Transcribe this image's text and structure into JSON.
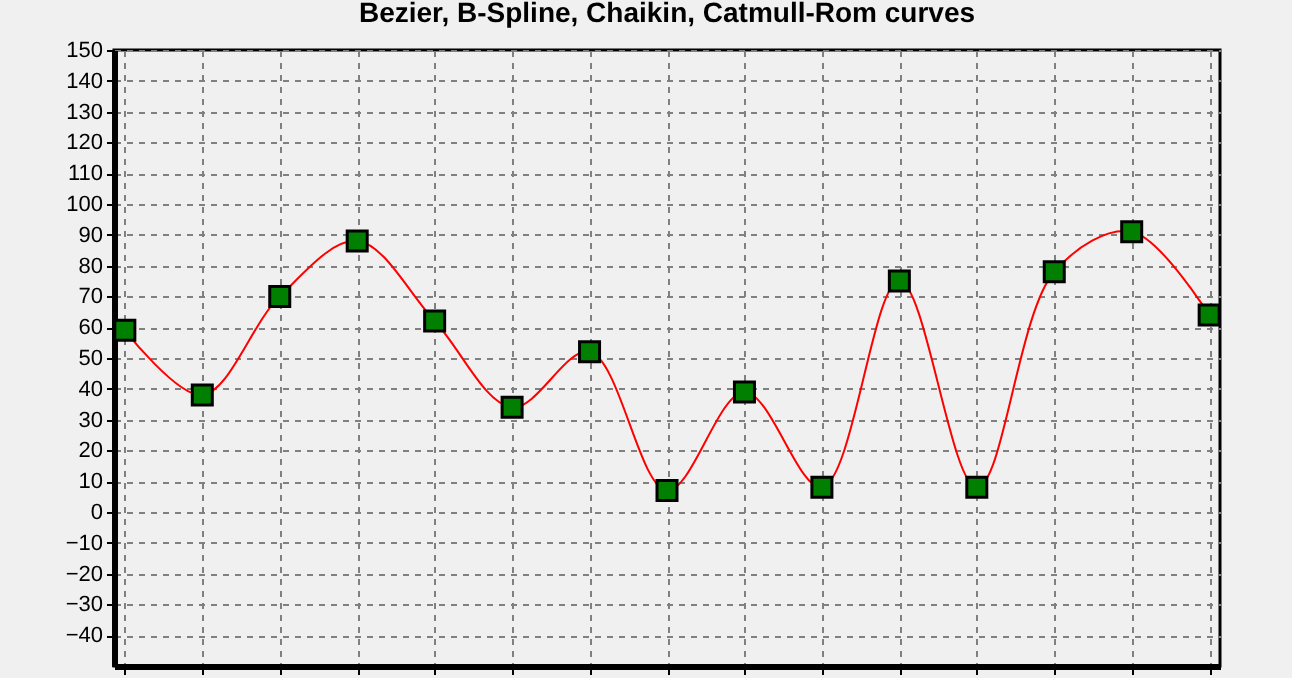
{
  "chart_data": {
    "type": "line",
    "title": "Bezier, B-Spline, Chaikin, Catmull-Rom curves",
    "categories": [
      null,
      null,
      null,
      null,
      null,
      null,
      null,
      null,
      null,
      null,
      null,
      null,
      null,
      null,
      null
    ],
    "series": [
      {
        "color": "#ff0000",
        "values": [
          59,
          38,
          70,
          88,
          62,
          34,
          52,
          7,
          39,
          8,
          75,
          8,
          78,
          91,
          64
        ]
      }
    ],
    "ylim": [
      -50,
      150
    ],
    "yticks": [
      -40,
      -30,
      -20,
      -10,
      0,
      10,
      20,
      30,
      40,
      50,
      60,
      70,
      80,
      90,
      100,
      110,
      120,
      130,
      140,
      150
    ],
    "grid": true,
    "marker": "square",
    "tick_labels": "y"
  }
}
